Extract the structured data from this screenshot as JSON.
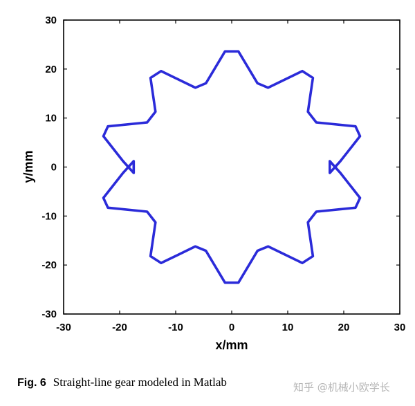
{
  "chart_data": {
    "type": "line",
    "title": "",
    "xlabel": "x/mm",
    "ylabel": "y/mm",
    "xlim": [
      -30,
      30
    ],
    "ylim": [
      -30,
      30
    ],
    "xticks": [
      -30,
      -20,
      -10,
      0,
      10,
      20,
      30
    ],
    "yticks": [
      -30,
      -20,
      -10,
      0,
      10,
      20,
      30
    ],
    "xtick_labels": [
      "-30",
      "-20",
      "-10",
      "0",
      "10",
      "20",
      "30"
    ],
    "ytick_labels": [
      "-30",
      "-20",
      "-10",
      "0",
      "10",
      "20",
      "30"
    ],
    "grid": false,
    "line_color": "#2b2bd9",
    "series": [
      {
        "closed": true,
        "x": [
          -1.2,
          1.2,
          4.6,
          6.5,
          12.6,
          14.5,
          13.6,
          15.1,
          22.1,
          22.9,
          19.4,
          17.5,
          17.5,
          19.4,
          22.9,
          22.1,
          15.1,
          13.6,
          14.5,
          12.6,
          6.5,
          4.6,
          1.2,
          -1.2,
          -4.6,
          -6.5,
          -12.6,
          -14.5,
          -13.6,
          -15.1,
          -22.1,
          -22.9,
          -19.4,
          -17.5,
          -17.5,
          -19.4,
          -22.9,
          -22.1,
          -15.1,
          -13.6,
          -14.5,
          -12.6,
          -6.5,
          -4.6
        ],
        "y": [
          23.6,
          23.6,
          17.1,
          16.2,
          19.6,
          18.2,
          11.3,
          9.1,
          8.3,
          6.3,
          1.2,
          -1.2,
          1.2,
          -1.2,
          -6.3,
          -8.3,
          -9.1,
          -11.3,
          -18.2,
          -19.6,
          -16.2,
          -17.1,
          -23.6,
          -23.6,
          -17.1,
          -16.2,
          -19.6,
          -18.2,
          -11.3,
          -9.1,
          -8.3,
          -6.3,
          -1.2,
          1.2,
          -1.2,
          1.2,
          6.3,
          8.3,
          9.1,
          11.3,
          18.2,
          19.6,
          16.2,
          17.1
        ]
      }
    ]
  },
  "caption": {
    "fig_number": "Fig. 6",
    "text": "Straight-line gear modeled in Matlab"
  },
  "watermark": "知乎 @机械小欧学长"
}
